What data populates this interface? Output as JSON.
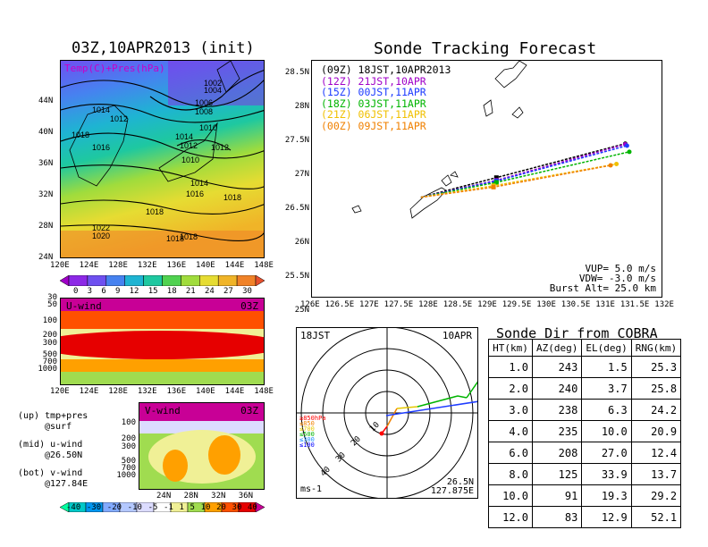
{
  "left_top": {
    "title": "03Z,10APR2013 (init)",
    "overlay": "Temp(C)+Pres(hPa)",
    "lat_ticks": [
      "44N",
      "40N",
      "36N",
      "32N",
      "28N",
      "24N"
    ],
    "lon_ticks": [
      "120E",
      "124E",
      "128E",
      "132E",
      "136E",
      "140E",
      "144E",
      "148E"
    ],
    "isobars": [
      "1002",
      "1004",
      "1006",
      "1008",
      "1010",
      "1014",
      "1012",
      "1018",
      "1016",
      "1014",
      "1012",
      "1010",
      "1012",
      "1014",
      "1016",
      "1018",
      "1018",
      "1022",
      "1020",
      "1018",
      "1018"
    ]
  },
  "temp_colorbar": {
    "labels": [
      "0",
      "3",
      "6",
      "9",
      "12",
      "15",
      "18",
      "21",
      "24",
      "27",
      "30"
    ],
    "colors": [
      "#a000c8",
      "#8c28e6",
      "#6e50f0",
      "#4682f0",
      "#1eb4d2",
      "#1ec8a0",
      "#50d250",
      "#a0dc3c",
      "#e6dc32",
      "#f0b428",
      "#f08228",
      "#e6502d"
    ]
  },
  "uwind": {
    "label": "U-wind",
    "time": "03Z",
    "p_ticks": [
      "30",
      "50",
      "100",
      "200",
      "300",
      "500",
      "700",
      "1000"
    ],
    "lon_ticks": [
      "120E",
      "124E",
      "128E",
      "132E",
      "136E",
      "140E",
      "144E",
      "148E"
    ]
  },
  "vwind": {
    "label": "V-wind",
    "time": "03Z",
    "p_ticks": [
      "100",
      "200",
      "300",
      "500",
      "700",
      "1000"
    ],
    "lat_ticks": [
      "24N",
      "28N",
      "32N",
      "36N"
    ]
  },
  "legend_notes": [
    {
      "a": "(up) tmp+pres",
      "b": "@surf"
    },
    {
      "a": "(mid) u-wind",
      "b": "@26.50N"
    },
    {
      "a": "(bot) v-wind",
      "b": "@127.84E"
    }
  ],
  "wind_colorbar": {
    "labels": [
      "-40",
      "-30",
      "-20",
      "-10",
      "-5",
      "-1",
      "1",
      "5",
      "10",
      "20",
      "30",
      "40"
    ],
    "colors": [
      "#00ffa0",
      "#00c8c8",
      "#0096f0",
      "#82aaff",
      "#b4c8ff",
      "#dcdcff",
      "#ffffff",
      "#f0f096",
      "#a0dc50",
      "#ffa000",
      "#ff5000",
      "#e60000",
      "#c80096"
    ]
  },
  "tracking": {
    "title": "Sonde Tracking Forecast",
    "lat_ticks": [
      "28.5N",
      "28N",
      "27.5N",
      "27N",
      "26.5N",
      "26N",
      "25.5N",
      "25N"
    ],
    "lon_ticks": [
      "126E",
      "126.5E",
      "127E",
      "127.5E",
      "128E",
      "128.5E",
      "129E",
      "129.5E",
      "130E",
      "130.5E",
      "131E",
      "131.5E",
      "132E"
    ],
    "runs": [
      {
        "label": "(09Z)  18JST,10APR2013",
        "color": "#000000"
      },
      {
        "label": "(12Z)  21JST,10APR",
        "color": "#a000c8"
      },
      {
        "label": "(15Z)  00JST,11APR",
        "color": "#1e3cff"
      },
      {
        "label": "(18Z)  03JST,11APR",
        "color": "#00b400"
      },
      {
        "label": "(21Z)  06JST,11APR",
        "color": "#f0c000"
      },
      {
        "label": "(00Z)  09JST,11APR",
        "color": "#f08000"
      }
    ],
    "vup": "VUP= 5.0 m/s",
    "vdw": "VDW= -3.0 m/s",
    "burst": "Burst Alt= 25.0 km"
  },
  "chart_data": {
    "type": "line",
    "title": "Sonde Tracking Forecast",
    "xlim": [
      126,
      132
    ],
    "ylim": [
      25,
      28.5
    ],
    "series": [
      {
        "name": "(09Z)  18JST,10APR2013",
        "x": [
          127.86,
          129.15,
          131.35
        ],
        "y": [
          26.49,
          26.78,
          27.28
        ]
      },
      {
        "name": "(12Z)  21JST,10APR",
        "x": [
          127.86,
          129.15,
          131.35
        ],
        "y": [
          26.49,
          26.74,
          27.27
        ]
      },
      {
        "name": "(15Z)  00JST,11APR",
        "x": [
          127.86,
          129.15,
          131.38
        ],
        "y": [
          26.49,
          26.73,
          27.25
        ]
      },
      {
        "name": "(18Z)  03JST,11APR",
        "x": [
          127.86,
          129.15,
          131.42
        ],
        "y": [
          26.49,
          26.71,
          27.16
        ]
      },
      {
        "name": "(21Z)  06JST,11APR",
        "x": [
          127.86,
          129.1,
          131.2
        ],
        "y": [
          26.49,
          26.66,
          26.98
        ]
      },
      {
        "name": "(00Z)  09JST,11APR",
        "x": [
          127.86,
          129.1,
          131.1
        ],
        "y": [
          26.49,
          26.64,
          26.96
        ]
      }
    ]
  },
  "polar": {
    "time": "18JST",
    "date": "10APR",
    "levels": [
      "≥850hPa",
      "≤850",
      "≤700",
      "≤500",
      "≤300",
      "≤100"
    ],
    "level_colors": [
      "#ff0000",
      "#f08000",
      "#e6c800",
      "#00b400",
      "#1e90ff",
      "#0000ff"
    ],
    "ring_labels": [
      "10",
      "20",
      "30",
      "40"
    ],
    "unit": "ms-1",
    "lat": "26.5N",
    "lon": "127.875E"
  },
  "sonde_table": {
    "title": "Sonde Dir from COBRA",
    "headers": [
      "HT(km)",
      "AZ(deg)",
      "EL(deg)",
      "RNG(km)"
    ],
    "rows": [
      [
        "1.0",
        "243",
        "1.5",
        "25.3"
      ],
      [
        "2.0",
        "240",
        "3.7",
        "25.8"
      ],
      [
        "3.0",
        "238",
        "6.3",
        "24.2"
      ],
      [
        "4.0",
        "235",
        "10.0",
        "20.9"
      ],
      [
        "6.0",
        "208",
        "27.0",
        "12.4"
      ],
      [
        "8.0",
        "125",
        "33.9",
        "13.7"
      ],
      [
        "10.0",
        "91",
        "19.3",
        "29.2"
      ],
      [
        "12.0",
        "83",
        "12.9",
        "52.1"
      ]
    ]
  }
}
